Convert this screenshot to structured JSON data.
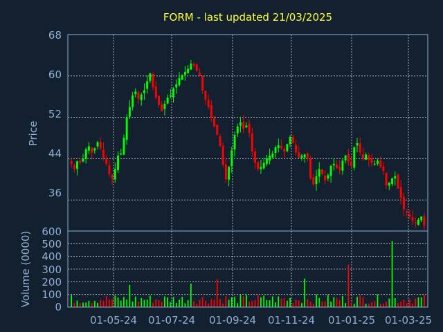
{
  "chart_data": {
    "type": "candlestick",
    "title": "FORM - last updated 21/03/2025",
    "colors": {
      "background": "#13202f",
      "up": "#00ff00",
      "down": "#ff0000",
      "text": "#8fb0d6",
      "title": "#ffff33",
      "grid": "#ffffff"
    },
    "x_tick_labels": [
      "01-05-24",
      "01-07-24",
      "01-09-24",
      "01-11-24",
      "01-01-25",
      "01-03-25"
    ],
    "price_panel": {
      "ylabel": "Price",
      "ylim": [
        30,
        68
      ],
      "ytick_labels": [
        "36",
        "44",
        "52",
        "60",
        "68"
      ],
      "series_close": [
        43.0,
        42.0,
        43.5,
        43.2,
        44.0,
        45.8,
        46.4,
        45.2,
        46.0,
        47.2,
        46.0,
        44.2,
        43.0,
        41.0,
        40.2,
        42.0,
        44.6,
        45.0,
        48.0,
        52.0,
        54.0,
        56.2,
        57.0,
        55.6,
        56.4,
        57.2,
        59.0,
        60.5,
        57.8,
        55.8,
        54.4,
        53.2,
        54.6,
        55.8,
        56.2,
        57.6,
        58.4,
        59.6,
        60.2,
        60.8,
        61.4,
        62.4,
        62.0,
        61.0,
        60.0,
        57.2,
        55.4,
        54.0,
        52.0,
        50.2,
        48.6,
        46.4,
        42.8,
        40.0,
        42.4,
        45.6,
        48.6,
        50.2,
        51.0,
        49.8,
        50.4,
        49.0,
        45.4,
        43.2,
        42.0,
        42.4,
        43.2,
        44.0,
        44.6,
        45.0,
        46.2,
        46.6,
        46.0,
        45.4,
        46.8,
        48.2,
        47.0,
        45.2,
        44.2,
        44.6,
        44.8,
        44.2,
        40.2,
        39.0,
        40.6,
        42.0,
        41.0,
        39.8,
        40.8,
        42.6,
        43.0,
        42.2,
        41.8,
        43.6,
        44.6,
        43.4,
        42.6,
        46.2,
        47.0,
        45.2,
        44.0,
        44.8,
        43.8,
        43.2,
        43.0,
        43.6,
        42.4,
        41.6,
        38.8,
        39.4,
        40.2,
        40.6,
        38.2,
        36.4,
        34.2,
        33.6,
        32.8,
        32.0,
        31.6,
        32.2,
        32.8,
        31.0
      ]
    },
    "volume_panel": {
      "ylabel": "Volume (0000)",
      "ylim": [
        0,
        600
      ],
      "ytick_labels": [
        "0",
        "100",
        "200",
        "300",
        "400",
        "500",
        "600"
      ],
      "spikes": [
        {
          "x_index": 20,
          "value": 175
        },
        {
          "x_index": 41,
          "value": 185
        },
        {
          "x_index": 50,
          "value": 220
        },
        {
          "x_index": 80,
          "value": 225
        },
        {
          "x_index": 95,
          "value": 335
        },
        {
          "x_index": 110,
          "value": 520
        }
      ]
    }
  }
}
